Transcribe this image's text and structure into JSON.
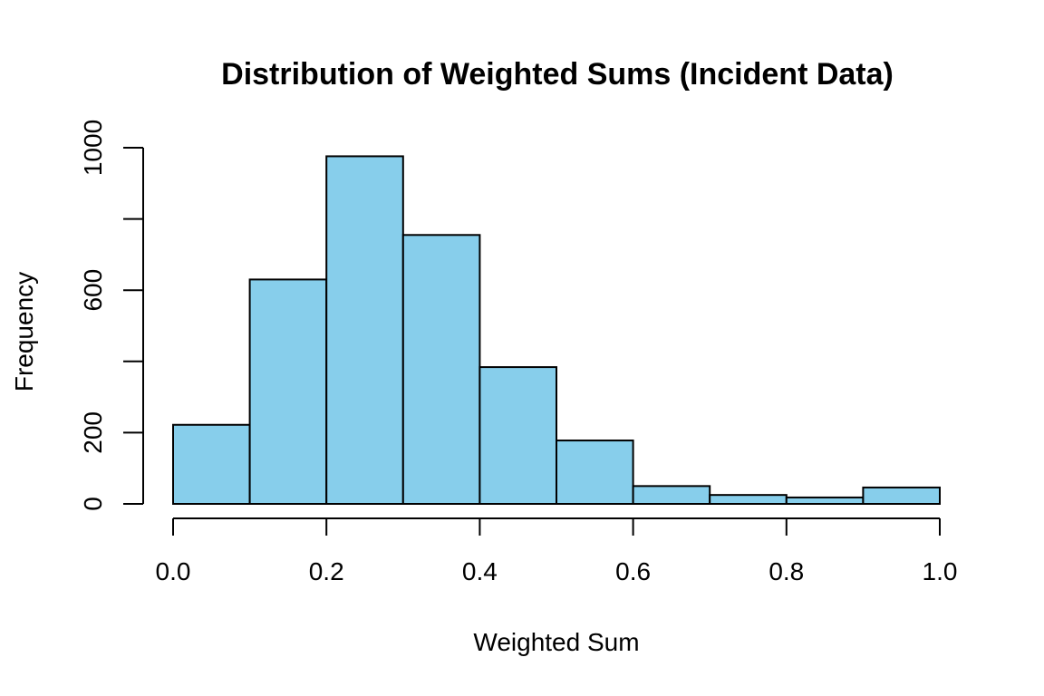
{
  "chart_data": {
    "type": "bar",
    "subtype": "histogram",
    "title": "Distribution of Weighted Sums (Incident Data)",
    "xlabel": "Weighted Sum",
    "ylabel": "Frequency",
    "bin_edges": [
      0.0,
      0.1,
      0.2,
      0.3,
      0.4,
      0.5,
      0.6,
      0.7,
      0.8,
      0.9,
      1.0
    ],
    "values": [
      222,
      630,
      976,
      755,
      384,
      178,
      50,
      25,
      18,
      46
    ],
    "xlim": [
      0.0,
      1.0
    ],
    "ylim": [
      0,
      1000
    ],
    "x_ticks": [
      0.0,
      0.2,
      0.4,
      0.6,
      0.8,
      1.0
    ],
    "x_tick_labels": [
      "0.0",
      "0.2",
      "0.4",
      "0.6",
      "0.8",
      "1.0"
    ],
    "y_ticks": [
      0,
      200,
      400,
      600,
      800,
      1000
    ],
    "y_tick_labels": [
      "0",
      "200",
      "",
      "600",
      "",
      "1000"
    ],
    "bar_color": "#87CEEB",
    "grid": false,
    "legend": "none"
  }
}
